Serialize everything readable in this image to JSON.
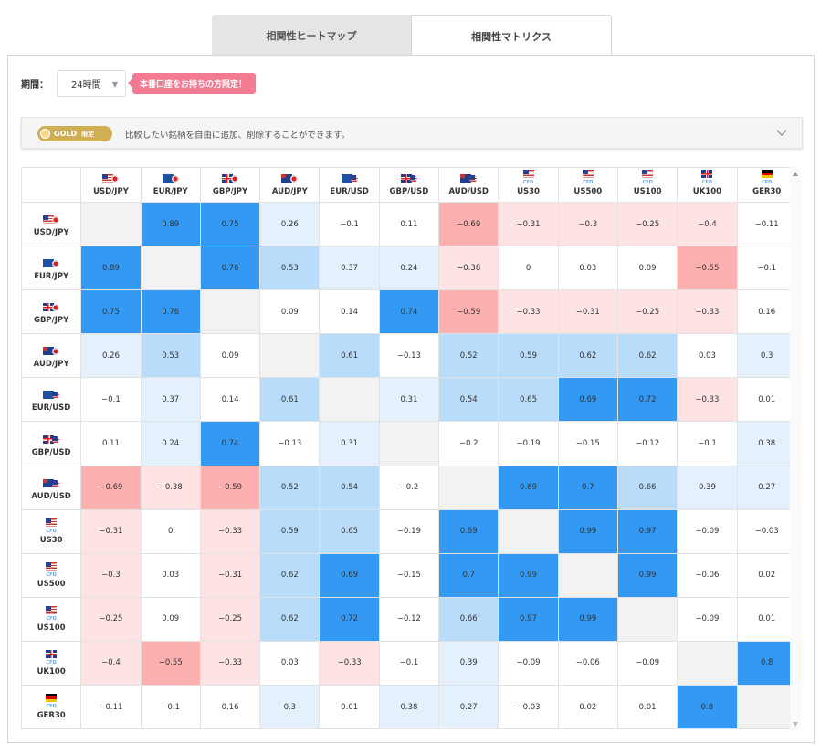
{
  "tabs": [
    {
      "label": "相関性ヒートマップ",
      "active": false
    },
    {
      "label": "相関性マトリクス",
      "active": true
    }
  ],
  "period": {
    "label": "期間：",
    "value": "24時間"
  },
  "live_badge": "本番口座をお持ちの方限定！",
  "gold": {
    "badge": "GOLD",
    "badge_sub": "限定",
    "text": "比較したい銘柄を自由に追加、削除することができます。"
  },
  "index_sub_label": "CFD",
  "symbols": [
    {
      "name": "USD/JPY",
      "flag": "us",
      "pair": "jp"
    },
    {
      "name": "EUR/JPY",
      "flag": "eu",
      "pair": "jp"
    },
    {
      "name": "GBP/JPY",
      "flag": "gb",
      "pair": "jp"
    },
    {
      "name": "AUD/JPY",
      "flag": "au",
      "pair": "jp"
    },
    {
      "name": "EUR/USD",
      "flag": "eu",
      "pair": "us"
    },
    {
      "name": "GBP/USD",
      "flag": "gb",
      "pair": "us"
    },
    {
      "name": "AUD/USD",
      "flag": "au",
      "pair": "us"
    },
    {
      "name": "US30",
      "flag": "us",
      "pair": null,
      "cfd": true
    },
    {
      "name": "US500",
      "flag": "us",
      "pair": null,
      "cfd": true
    },
    {
      "name": "US100",
      "flag": "us",
      "pair": null,
      "cfd": true
    },
    {
      "name": "UK100",
      "flag": "gb",
      "pair": null,
      "cfd": true
    },
    {
      "name": "GER30",
      "flag": "de",
      "pair": null,
      "cfd": true
    }
  ],
  "matrix": [
    [
      null,
      "0.89",
      "0.75",
      "0.26",
      "−0.1",
      "0.11",
      "−0.69",
      "−0.31",
      "−0.3",
      "−0.25",
      "−0.4",
      "−0.11"
    ],
    [
      "0.89",
      null,
      "0.76",
      "0.53",
      "0.37",
      "0.24",
      "−0.38",
      "0",
      "0.03",
      "0.09",
      "−0.55",
      "−0.1"
    ],
    [
      "0.75",
      "0.76",
      null,
      "0.09",
      "0.14",
      "0.74",
      "−0.59",
      "−0.33",
      "−0.31",
      "−0.25",
      "−0.33",
      "0.16"
    ],
    [
      "0.26",
      "0.53",
      "0.09",
      null,
      "0.61",
      "−0.13",
      "0.52",
      "0.59",
      "0.62",
      "0.62",
      "0.03",
      "0.3"
    ],
    [
      "−0.1",
      "0.37",
      "0.14",
      "0.61",
      null,
      "0.31",
      "0.54",
      "0.65",
      "0.69",
      "0.72",
      "−0.33",
      "0.01"
    ],
    [
      "0.11",
      "0.24",
      "0.74",
      "−0.13",
      "0.31",
      null,
      "−0.2",
      "−0.19",
      "−0.15",
      "−0.12",
      "−0.1",
      "0.38"
    ],
    [
      "−0.69",
      "−0.38",
      "−0.59",
      "0.52",
      "0.54",
      "−0.2",
      null,
      "0.69",
      "0.7",
      "0.66",
      "0.39",
      "0.27"
    ],
    [
      "−0.31",
      "0",
      "−0.33",
      "0.59",
      "0.65",
      "−0.19",
      "0.69",
      null,
      "0.99",
      "0.97",
      "−0.09",
      "−0.03"
    ],
    [
      "−0.3",
      "0.03",
      "−0.31",
      "0.62",
      "0.69",
      "−0.15",
      "0.7",
      "0.99",
      null,
      "0.99",
      "−0.06",
      "0.02"
    ],
    [
      "−0.25",
      "0.09",
      "−0.25",
      "0.62",
      "0.72",
      "−0.12",
      "0.66",
      "0.97",
      "0.99",
      null,
      "−0.09",
      "0.01"
    ],
    [
      "−0.4",
      "−0.55",
      "−0.33",
      "0.03",
      "−0.33",
      "−0.1",
      "0.39",
      "−0.09",
      "−0.06",
      "−0.09",
      null,
      "0.8"
    ],
    [
      "−0.11",
      "−0.1",
      "0.16",
      "0.3",
      "0.01",
      "0.38",
      "0.27",
      "−0.03",
      "0.02",
      "0.01",
      "0.8",
      null
    ]
  ],
  "colors": {
    "strong_pos": "#3399f3",
    "mid_pos": "#b9dcfa",
    "weak_pos": "#e4f1fc",
    "strong_neg": "#fdb0b0",
    "mid_neg": "#fde3e3",
    "neutral": "#ffffff",
    "diagonal": "#f2f2f2"
  }
}
